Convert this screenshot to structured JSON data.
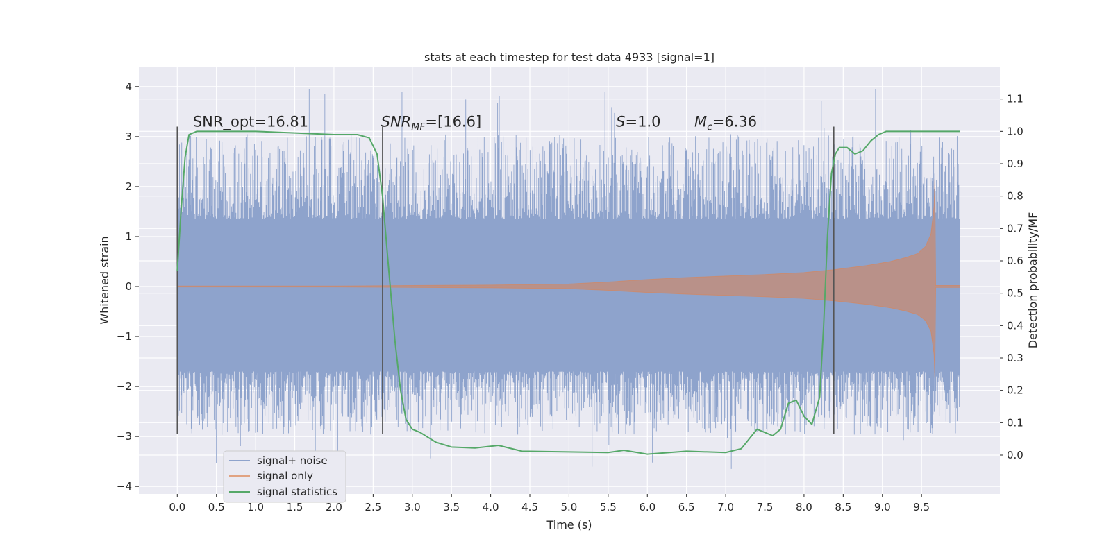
{
  "chart_data": {
    "type": "line",
    "title": "stats at each timestep for test data 4933 [signal=1]",
    "xlabel": "Time (s)",
    "ylabel": "Whitened strain",
    "y2label": "Detection probability/MF",
    "xlim": [
      -0.49,
      10.5
    ],
    "ylim": [
      -4.15,
      4.4
    ],
    "y2lim": [
      -0.12,
      1.2
    ],
    "x_ticks": [
      0.0,
      0.5,
      1.0,
      1.5,
      2.0,
      2.5,
      3.0,
      3.5,
      4.0,
      4.5,
      5.0,
      5.5,
      6.0,
      6.5,
      7.0,
      7.5,
      8.0,
      8.5,
      9.0,
      9.5
    ],
    "x_tick_labels": [
      "0.0",
      "0.5",
      "1.0",
      "1.5",
      "2.0",
      "2.5",
      "3.0",
      "3.5",
      "4.0",
      "4.5",
      "5.0",
      "5.5",
      "6.0",
      "6.5",
      "7.0",
      "7.5",
      "8.0",
      "8.5",
      "9.0",
      "9.5"
    ],
    "y_ticks": [
      -4,
      -3,
      -2,
      -1,
      0,
      1,
      2,
      3,
      4
    ],
    "y_tick_labels": [
      "−4",
      "−3",
      "−2",
      "−1",
      "0",
      "1",
      "2",
      "3",
      "4"
    ],
    "y2_ticks": [
      0.0,
      0.1,
      0.2,
      0.3,
      0.4,
      0.5,
      0.6,
      0.7,
      0.8,
      0.9,
      1.0,
      1.1
    ],
    "y2_tick_labels": [
      "0.0",
      "0.1",
      "0.2",
      "0.3",
      "0.4",
      "0.5",
      "0.6",
      "0.7",
      "0.8",
      "0.9",
      "1.0",
      "1.1"
    ],
    "grid": true,
    "legend_position": "lower-left",
    "colors": {
      "noise": "#8ea3cc",
      "signal": "#dd8452",
      "stats": "#55a868",
      "markers": "#555555",
      "background": "#eaeaf2"
    },
    "series": [
      {
        "name": "signal+ noise",
        "kind": "noise_band",
        "x_range": [
          0.0,
          9.99
        ],
        "band_upper": 1.35,
        "band_lower": -1.7,
        "peak_range": [
          2.0,
          4.05
        ],
        "trough_range": [
          -3.7,
          -2.0
        ]
      },
      {
        "name": "signal only",
        "kind": "chirp_envelope",
        "x": [
          0.0,
          1.0,
          2.0,
          3.0,
          4.0,
          5.0,
          5.5,
          6.0,
          6.5,
          7.0,
          7.5,
          8.0,
          8.4,
          8.8,
          9.1,
          9.3,
          9.45,
          9.55,
          9.62,
          9.66,
          9.67,
          9.68,
          9.99
        ],
        "amplitude": [
          0.01,
          0.01,
          0.01,
          0.02,
          0.03,
          0.05,
          0.09,
          0.14,
          0.18,
          0.21,
          0.24,
          0.28,
          0.34,
          0.42,
          0.5,
          0.58,
          0.66,
          0.8,
          1.05,
          1.6,
          2.15,
          0.02,
          0.02
        ]
      },
      {
        "name": "signal statistics",
        "kind": "line",
        "axis": "right",
        "x": [
          0.0,
          0.05,
          0.1,
          0.15,
          0.25,
          0.5,
          1.0,
          1.5,
          2.0,
          2.3,
          2.45,
          2.55,
          2.62,
          2.7,
          2.78,
          2.85,
          2.92,
          3.0,
          3.1,
          3.3,
          3.5,
          3.8,
          4.1,
          4.4,
          5.0,
          5.5,
          5.7,
          6.0,
          6.5,
          7.0,
          7.2,
          7.3,
          7.4,
          7.5,
          7.6,
          7.7,
          7.8,
          7.9,
          8.0,
          8.1,
          8.2,
          8.25,
          8.3,
          8.35,
          8.4,
          8.45,
          8.55,
          8.65,
          8.75,
          8.85,
          8.95,
          9.05,
          9.2,
          9.5,
          9.99
        ],
        "y": [
          0.57,
          0.76,
          0.92,
          0.99,
          1.0,
          1.0,
          1.0,
          0.995,
          0.99,
          0.99,
          0.98,
          0.93,
          0.8,
          0.57,
          0.35,
          0.2,
          0.11,
          0.08,
          0.07,
          0.04,
          0.025,
          0.022,
          0.03,
          0.012,
          0.01,
          0.008,
          0.015,
          0.003,
          0.012,
          0.008,
          0.02,
          0.05,
          0.08,
          0.07,
          0.06,
          0.08,
          0.16,
          0.17,
          0.12,
          0.095,
          0.18,
          0.4,
          0.68,
          0.87,
          0.93,
          0.95,
          0.95,
          0.93,
          0.94,
          0.97,
          0.99,
          1.0,
          1.0,
          1.0,
          1.0
        ]
      }
    ],
    "vertical_markers": [
      0.0,
      2.62,
      8.38
    ],
    "vertical_marker_range": [
      -2.95,
      3.2
    ],
    "annotations": [
      {
        "x": 0.2,
        "y": 3.2,
        "kind": "plain",
        "text": "SNR_opt=16.81"
      },
      {
        "x": 2.6,
        "y": 3.2,
        "kind": "math",
        "main": "SNR",
        "sub": "MF",
        "rest": "=[16.6]"
      },
      {
        "x": 5.6,
        "y": 3.2,
        "kind": "math",
        "main": "S",
        "sub": "",
        "rest": "=1.0"
      },
      {
        "x": 6.6,
        "y": 3.2,
        "kind": "math",
        "main": "M",
        "sub": "c",
        "rest": "=6.36"
      }
    ]
  }
}
